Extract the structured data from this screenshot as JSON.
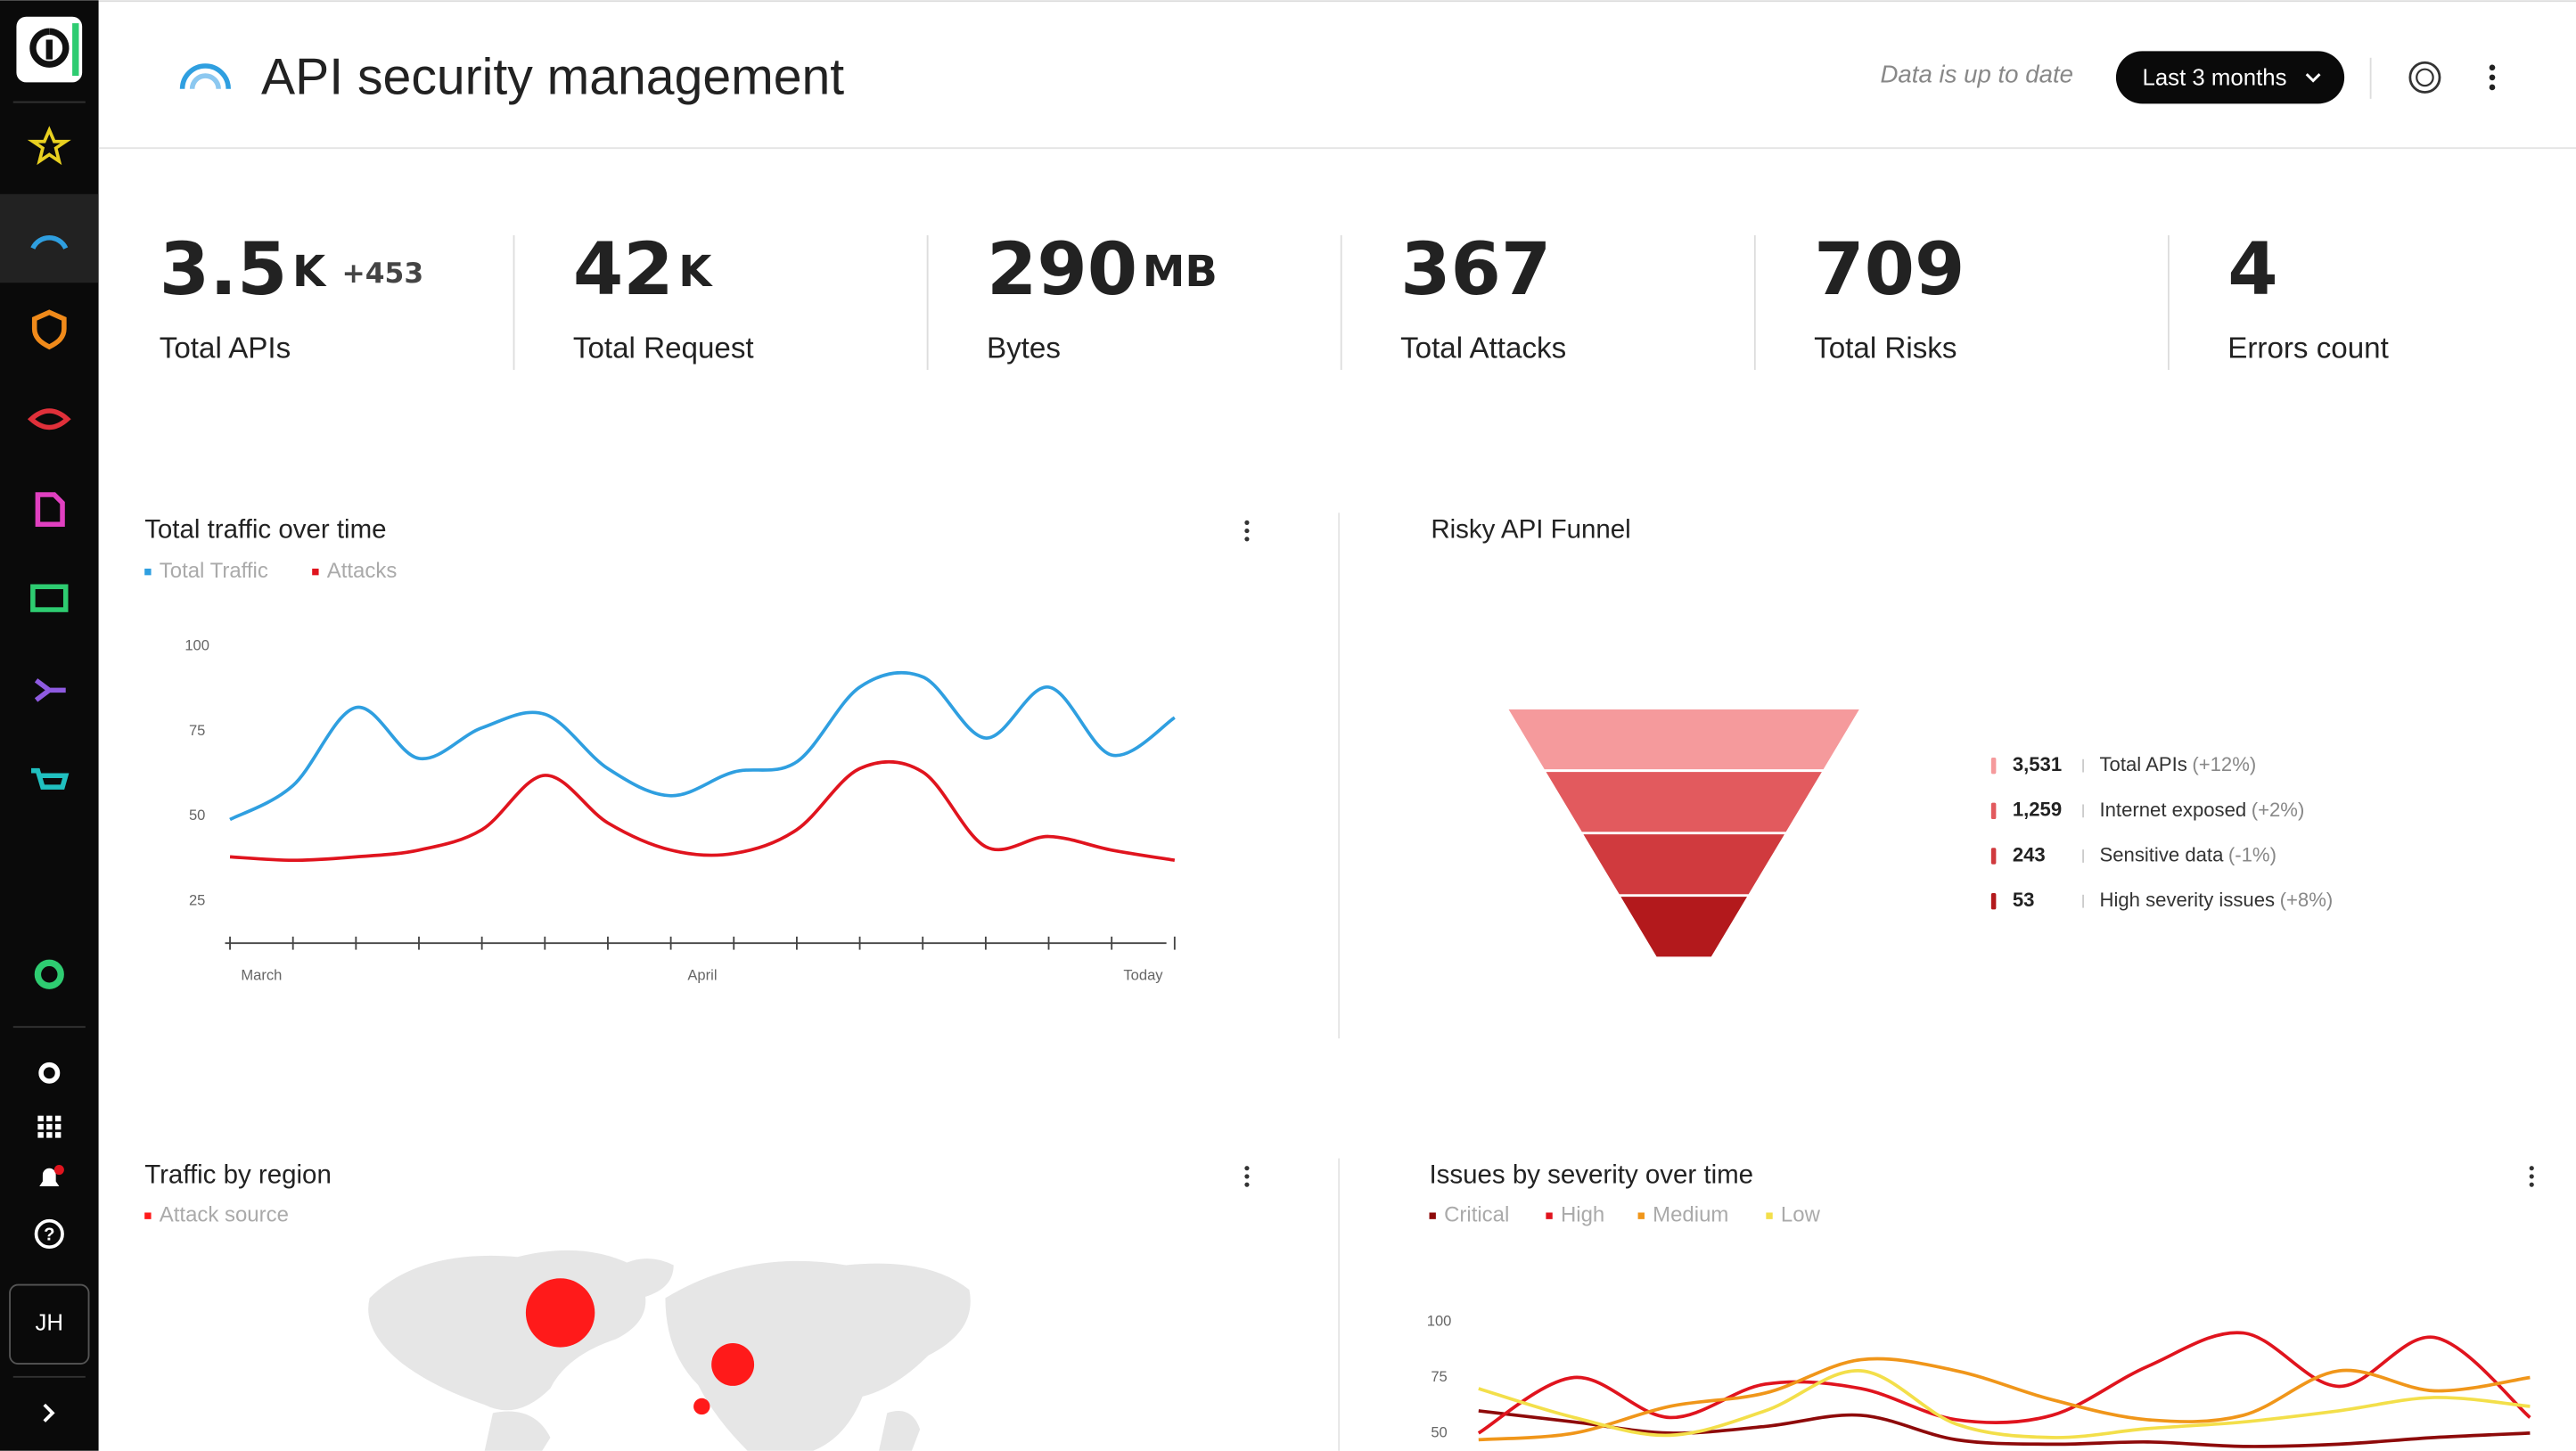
{
  "header": {
    "title": "API security management",
    "status": "Data is up to date",
    "range_button": "Last 3 months"
  },
  "user_initials": "JH",
  "kpis": [
    {
      "value": "3.5",
      "unit": "K",
      "delta": "+453",
      "label": "Total APIs"
    },
    {
      "value": "42",
      "unit": "K",
      "label": "Total Request"
    },
    {
      "value": "290",
      "unit": "MB",
      "label": "Bytes"
    },
    {
      "value": "367",
      "label": "Total Attacks"
    },
    {
      "value": "709",
      "label": "Total Risks"
    },
    {
      "value": "4",
      "label": "Errors count"
    }
  ],
  "traffic_chart": {
    "type": "line",
    "title": "Total traffic over time",
    "x": [
      0,
      1,
      2,
      3,
      4,
      5,
      6,
      7,
      8,
      9,
      10,
      11,
      12,
      13,
      14,
      15
    ],
    "xlim": [
      0,
      15
    ],
    "xticks": [
      {
        "value": 0.5,
        "label": "March"
      },
      {
        "value": 7.5,
        "label": "April"
      },
      {
        "value": 14.5,
        "label": "Today"
      }
    ],
    "ylim": [
      15,
      105
    ],
    "yticks": [
      25,
      50,
      75,
      100
    ],
    "series": [
      {
        "name": "Total Traffic",
        "color": "#2f9fe0",
        "values": [
          49,
          59,
          82,
          67,
          76,
          80,
          64,
          56,
          63,
          66,
          88,
          91,
          73,
          88,
          68,
          79
        ]
      },
      {
        "name": "Attacks",
        "color": "#e0141e",
        "values": [
          38,
          37,
          38,
          40,
          46,
          62,
          48,
          40,
          39,
          46,
          64,
          63,
          41,
          44,
          40,
          37
        ]
      }
    ]
  },
  "funnel": {
    "type": "funnel",
    "title": "Risky API Funnel",
    "stages": [
      {
        "value": 3531,
        "value_label": "3,531",
        "name": "Total APIs",
        "change": "(+12%)",
        "color": "#f59a9c"
      },
      {
        "value": 1259,
        "value_label": "1,259",
        "name": "Internet exposed",
        "change": "(+2%)",
        "color": "#e25a5e"
      },
      {
        "value": 243,
        "value_label": "243",
        "name": "Sensitive data",
        "change": "(-1%)",
        "color": "#d03a3e"
      },
      {
        "value": 53,
        "value_label": "53",
        "name": "High severity issues",
        "change": "(+8%)",
        "color": "#b3191c"
      }
    ]
  },
  "region_map": {
    "type": "bubble-map",
    "title": "Traffic by region",
    "legend": "Attack source",
    "color": "#ff1a1a",
    "points": [
      {
        "lon": -59,
        "lat": 54,
        "size": 21
      },
      {
        "lon": 41,
        "lat": 33,
        "size": 13
      },
      {
        "lon": 23,
        "lat": 16,
        "size": 5
      }
    ]
  },
  "severity_chart": {
    "type": "line",
    "title": "Issues by severity over time",
    "x": [
      0,
      1,
      2,
      3,
      4,
      5,
      6,
      7,
      8,
      9,
      10,
      11
    ],
    "xlim": [
      0,
      11
    ],
    "ylim": [
      45,
      110
    ],
    "yticks": [
      50,
      75,
      100
    ],
    "series": [
      {
        "name": "Critical",
        "color": "#8e0a0a",
        "values": [
          60,
          55,
          50,
          53,
          58,
          47,
          45,
          46,
          44,
          45,
          48,
          50
        ]
      },
      {
        "name": "High",
        "color": "#e0141e",
        "values": [
          50,
          75,
          57,
          72,
          70,
          56,
          58,
          80,
          95,
          71,
          93,
          57
        ]
      },
      {
        "name": "Medium",
        "color": "#f0961a",
        "values": [
          47,
          50,
          62,
          68,
          83,
          78,
          65,
          56,
          58,
          78,
          69,
          75
        ]
      },
      {
        "name": "Low",
        "color": "#f3df4a",
        "values": [
          70,
          57,
          49,
          60,
          78,
          54,
          48,
          52,
          55,
          60,
          66,
          62
        ]
      }
    ]
  }
}
